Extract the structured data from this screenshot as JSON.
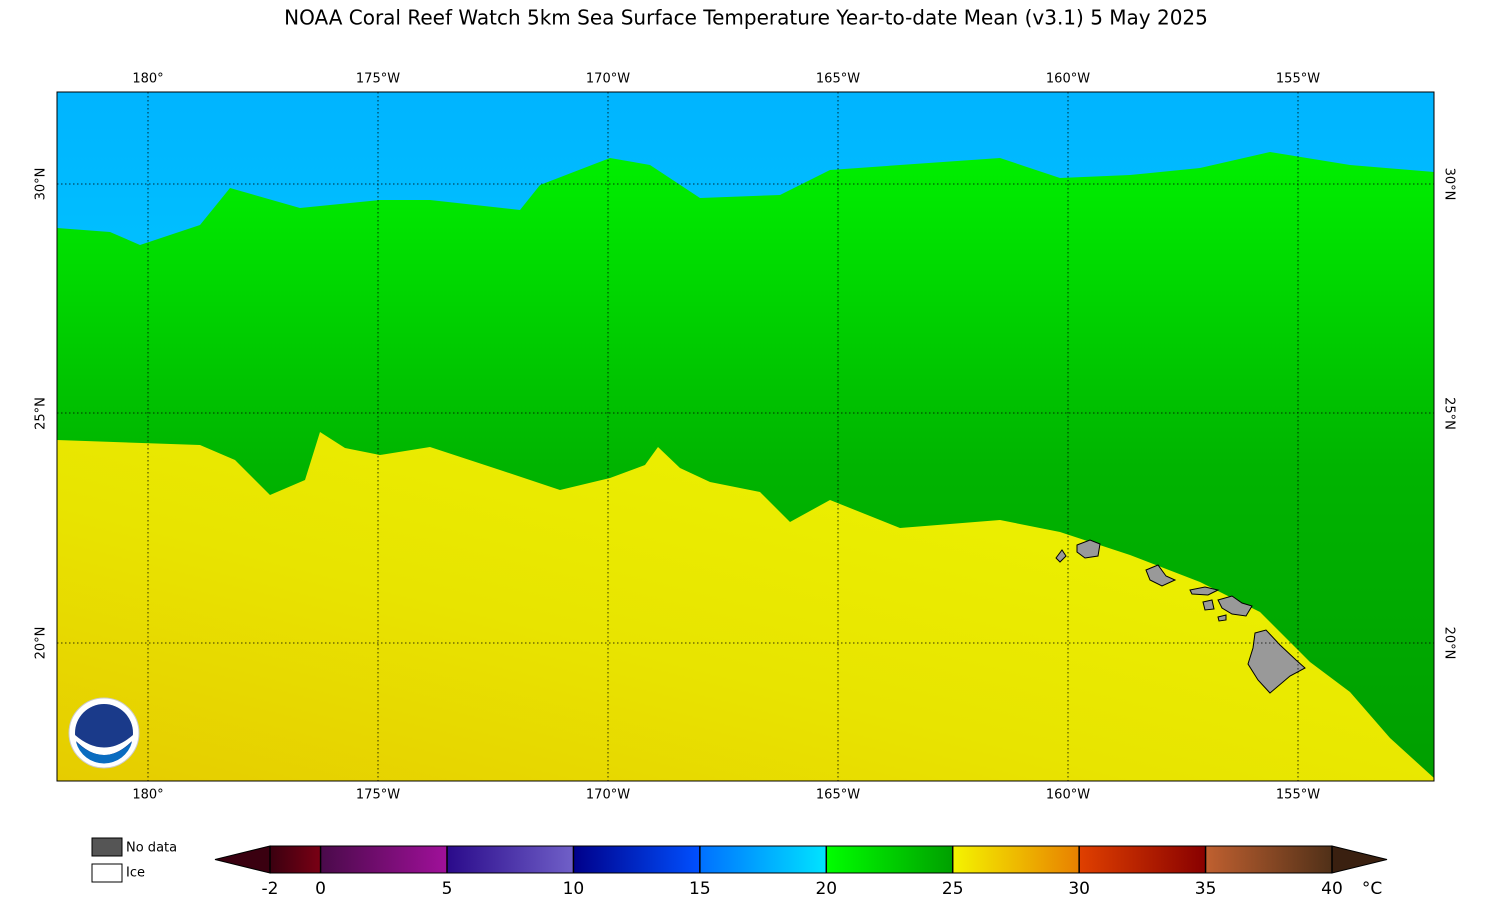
{
  "map": {
    "title": "NOAA Coral Reef Watch 5km Sea Surface Temperature Year-to-date Mean  (v3.1)   5 May 2025",
    "lon_labels": [
      "180°",
      "175°W",
      "170°W",
      "165°W",
      "160°W",
      "155°W"
    ],
    "lat_labels": [
      "30°N",
      "25°N",
      "20°N"
    ],
    "legend": {
      "no_data": "No data",
      "ice": "Ice"
    },
    "colorbar": {
      "range": [
        -2,
        40
      ],
      "ticks": [
        -2,
        0,
        5,
        10,
        15,
        20,
        25,
        30,
        35,
        40
      ],
      "unit": "°C"
    }
  }
}
